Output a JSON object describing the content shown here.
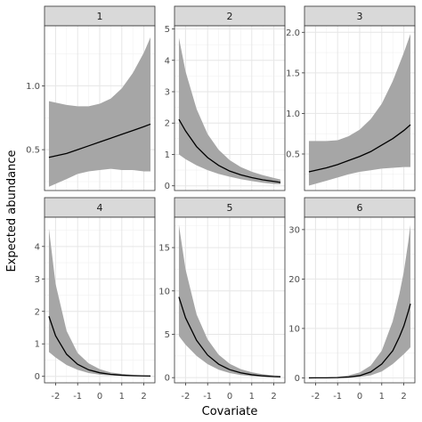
{
  "chart_data": {
    "type": "line",
    "xlabel": "Covariate",
    "ylabel": "Expected abundance",
    "grid": true,
    "x_ticks": [
      -2,
      -1,
      0,
      1,
      2
    ],
    "xlim": [
      -2.5,
      2.5
    ],
    "panels": [
      {
        "strip": "1",
        "ylim": [
          0.18,
          1.47
        ],
        "y_ticks": [
          0.5,
          1.0
        ],
        "y_tick_labels": [
          "0.5",
          "1.0"
        ],
        "x": [
          -2.3,
          -1.5,
          -1.0,
          -0.5,
          0.0,
          0.5,
          1.0,
          1.5,
          2.0,
          2.3
        ],
        "fit": [
          0.44,
          0.47,
          0.5,
          0.53,
          0.56,
          0.59,
          0.62,
          0.65,
          0.68,
          0.7
        ],
        "lower": [
          0.21,
          0.27,
          0.31,
          0.33,
          0.34,
          0.35,
          0.34,
          0.34,
          0.33,
          0.33
        ],
        "upper": [
          0.88,
          0.85,
          0.84,
          0.84,
          0.86,
          0.9,
          0.98,
          1.1,
          1.26,
          1.38
        ]
      },
      {
        "strip": "2",
        "ylim": [
          -0.15,
          5.1
        ],
        "y_ticks": [
          0,
          1,
          2,
          3,
          4,
          5
        ],
        "y_tick_labels": [
          "0",
          "1",
          "2",
          "3",
          "4",
          "5"
        ],
        "x": [
          -2.3,
          -2.0,
          -1.5,
          -1.0,
          -0.5,
          0.0,
          0.5,
          1.0,
          1.5,
          2.0,
          2.3
        ],
        "fit": [
          2.12,
          1.75,
          1.25,
          0.9,
          0.65,
          0.47,
          0.35,
          0.26,
          0.19,
          0.14,
          0.11
        ],
        "lower": [
          1.0,
          0.85,
          0.65,
          0.5,
          0.38,
          0.29,
          0.21,
          0.15,
          0.1,
          0.06,
          0.05
        ],
        "upper": [
          4.72,
          3.65,
          2.45,
          1.65,
          1.15,
          0.82,
          0.6,
          0.45,
          0.34,
          0.25,
          0.2
        ]
      },
      {
        "strip": "3",
        "ylim": [
          0.05,
          2.08
        ],
        "y_ticks": [
          0.5,
          1.0,
          1.5,
          2.0
        ],
        "y_tick_labels": [
          "0.5",
          "1.0",
          "1.5",
          "2.0"
        ],
        "x": [
          -2.3,
          -1.5,
          -1.0,
          -0.5,
          0.0,
          0.5,
          1.0,
          1.5,
          2.0,
          2.3
        ],
        "fit": [
          0.28,
          0.33,
          0.37,
          0.42,
          0.47,
          0.53,
          0.61,
          0.69,
          0.79,
          0.86
        ],
        "lower": [
          0.11,
          0.17,
          0.21,
          0.25,
          0.28,
          0.3,
          0.32,
          0.33,
          0.34,
          0.34
        ],
        "upper": [
          0.66,
          0.66,
          0.67,
          0.72,
          0.8,
          0.93,
          1.12,
          1.4,
          1.75,
          1.98
        ]
      },
      {
        "strip": "4",
        "ylim": [
          -0.2,
          4.9
        ],
        "y_ticks": [
          0,
          1,
          2,
          3,
          4
        ],
        "y_tick_labels": [
          "0",
          "1",
          "2",
          "3",
          "4"
        ],
        "x": [
          -2.3,
          -2.0,
          -1.5,
          -1.0,
          -0.5,
          0.0,
          0.5,
          1.0,
          1.5,
          2.0,
          2.3
        ],
        "fit": [
          1.85,
          1.25,
          0.68,
          0.37,
          0.2,
          0.11,
          0.06,
          0.035,
          0.02,
          0.012,
          0.009
        ],
        "lower": [
          0.75,
          0.58,
          0.35,
          0.2,
          0.1,
          0.05,
          0.025,
          0.012,
          0.006,
          0.003,
          0.002
        ],
        "upper": [
          4.55,
          2.85,
          1.4,
          0.72,
          0.4,
          0.22,
          0.12,
          0.075,
          0.045,
          0.03,
          0.025
        ]
      },
      {
        "strip": "5",
        "ylim": [
          -0.6,
          18.5
        ],
        "y_ticks": [
          0,
          5,
          10,
          15
        ],
        "y_tick_labels": [
          "0",
          "5",
          "10",
          "15"
        ],
        "x": [
          -2.3,
          -2.0,
          -1.5,
          -1.0,
          -0.5,
          0.0,
          0.5,
          1.0,
          1.5,
          2.0,
          2.3
        ],
        "fit": [
          9.3,
          6.9,
          4.3,
          2.6,
          1.55,
          0.92,
          0.55,
          0.33,
          0.2,
          0.12,
          0.09
        ],
        "lower": [
          4.8,
          3.8,
          2.5,
          1.55,
          0.92,
          0.53,
          0.3,
          0.17,
          0.09,
          0.05,
          0.03
        ],
        "upper": [
          17.6,
          12.5,
          7.3,
          4.4,
          2.65,
          1.6,
          0.98,
          0.62,
          0.39,
          0.26,
          0.21
        ]
      },
      {
        "strip": "6",
        "ylim": [
          -1.0,
          32.5
        ],
        "y_ticks": [
          0,
          10,
          20,
          30
        ],
        "y_tick_labels": [
          "0",
          "10",
          "20",
          "30"
        ],
        "x": [
          -2.3,
          -2.0,
          -1.5,
          -1.0,
          -0.5,
          0.0,
          0.5,
          1.0,
          1.5,
          1.8,
          2.0,
          2.2,
          2.3
        ],
        "fit": [
          0.003,
          0.006,
          0.02,
          0.06,
          0.17,
          0.45,
          1.2,
          2.8,
          5.5,
          8.3,
          10.5,
          13.4,
          15.0
        ],
        "lower": [
          0.0,
          0.001,
          0.005,
          0.02,
          0.06,
          0.2,
          0.5,
          1.3,
          2.8,
          4.0,
          4.8,
          5.7,
          6.2
        ],
        "upper": [
          0.02,
          0.04,
          0.08,
          0.2,
          0.5,
          1.1,
          2.5,
          5.5,
          11.5,
          17.0,
          21.5,
          27.5,
          31.0
        ]
      }
    ]
  }
}
